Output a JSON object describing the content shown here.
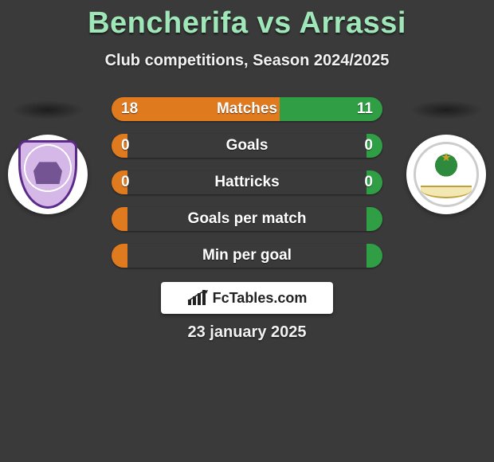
{
  "title": "Bencherifa vs Arrassi",
  "subtitle": "Club competitions, Season 2024/2025",
  "date": "23 january 2025",
  "brand": "FcTables.com",
  "colors": {
    "left": "#e07a1f",
    "right": "#2f9e44",
    "title": "#9fe6b8",
    "background": "#3a3a3a"
  },
  "team_left": {
    "name": "Bencherifa",
    "logo_primary": "#5c2b8a"
  },
  "team_right": {
    "name": "Arrassi",
    "logo_primary": "#2e8b3d"
  },
  "rows": [
    {
      "label": "Matches",
      "left": "18",
      "right": "11",
      "left_pct": 62,
      "right_pct": 38
    },
    {
      "label": "Goals",
      "left": "0",
      "right": "0",
      "left_pct": 6,
      "right_pct": 6
    },
    {
      "label": "Hattricks",
      "left": "0",
      "right": "0",
      "left_pct": 6,
      "right_pct": 6
    },
    {
      "label": "Goals per match",
      "left": "",
      "right": "",
      "left_pct": 6,
      "right_pct": 6
    },
    {
      "label": "Min per goal",
      "left": "",
      "right": "",
      "left_pct": 6,
      "right_pct": 6
    }
  ]
}
